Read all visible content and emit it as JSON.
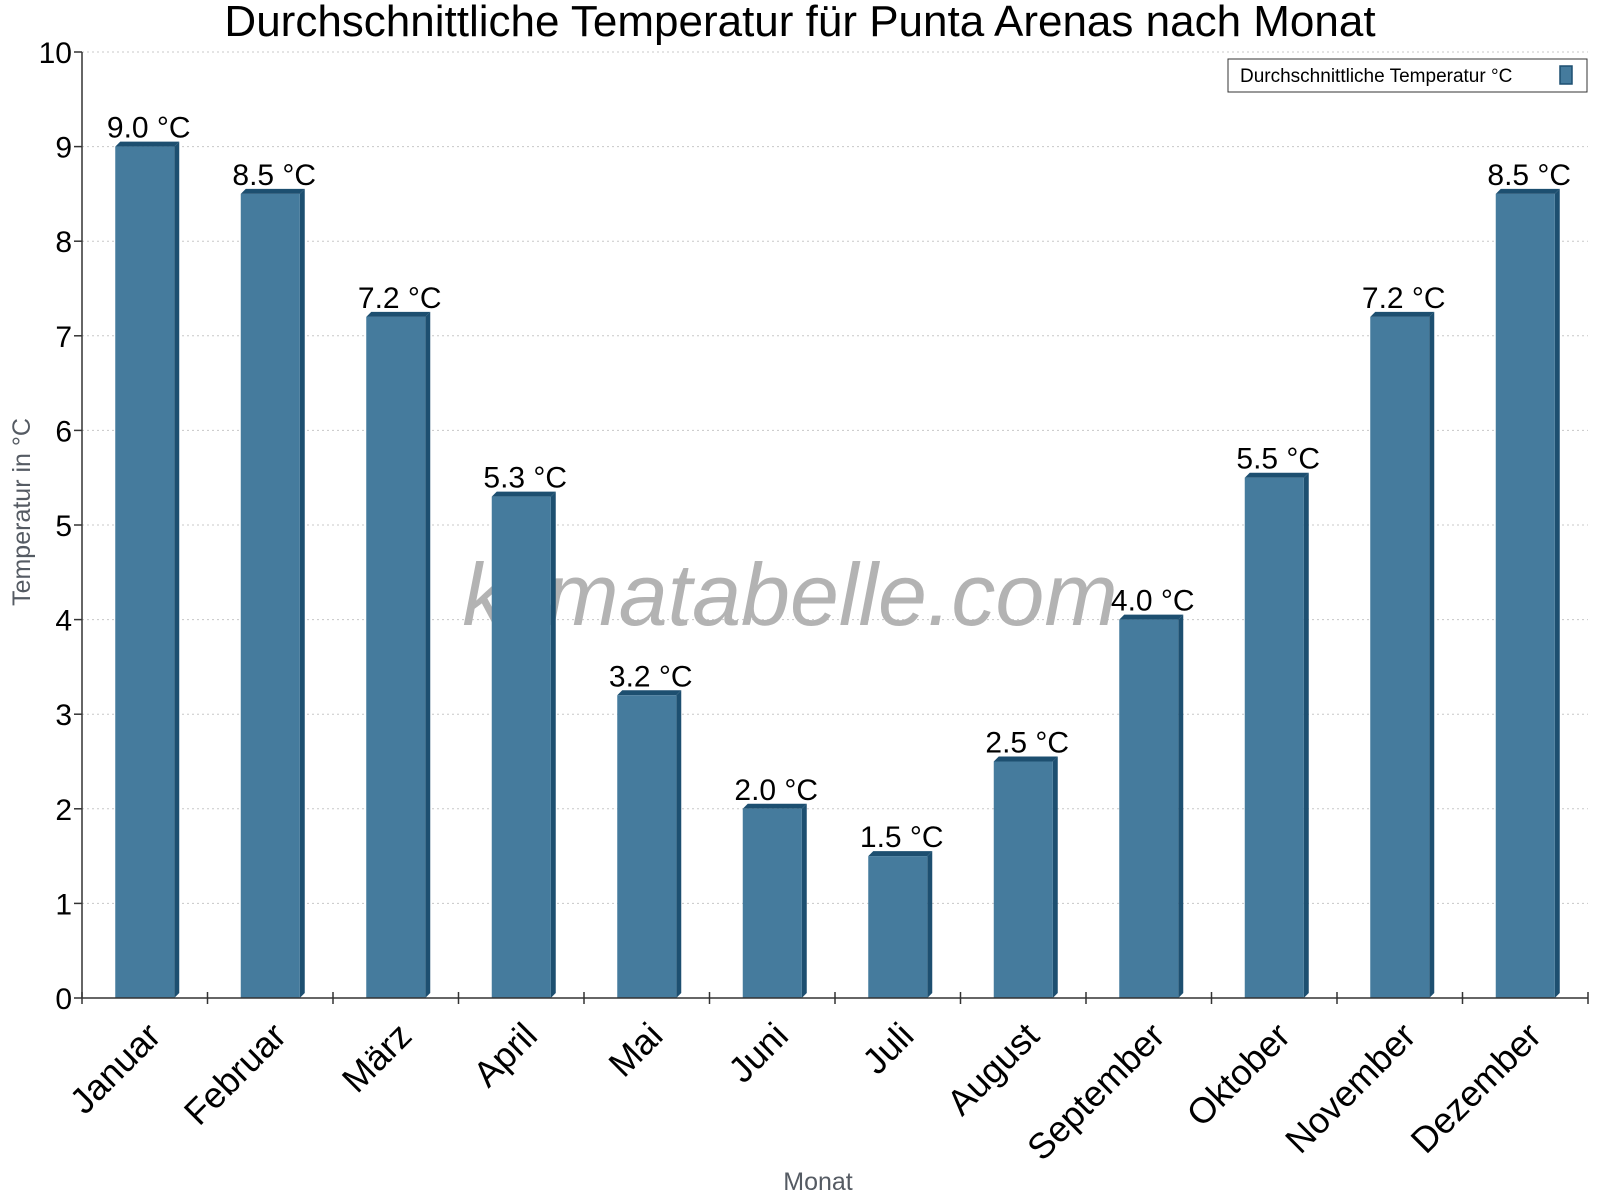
{
  "chart_data": {
    "type": "bar",
    "title": "Durchschnittliche Temperatur für Punta Arenas nach Monat",
    "xlabel": "Monat",
    "ylabel": "Temperatur in °C",
    "ylim": [
      0,
      10
    ],
    "yticks": [
      0,
      1,
      2,
      3,
      4,
      5,
      6,
      7,
      8,
      9,
      10
    ],
    "grid": true,
    "legend_position": "top-right",
    "categories": [
      "Januar",
      "Februar",
      "März",
      "April",
      "Mai",
      "Juni",
      "Juli",
      "August",
      "September",
      "Oktober",
      "November",
      "Dezember"
    ],
    "series": [
      {
        "name": "Durchschnittliche Temperatur °C",
        "values": [
          9.0,
          8.5,
          7.2,
          5.3,
          3.2,
          2.0,
          1.5,
          2.5,
          4.0,
          5.5,
          7.2,
          8.5
        ],
        "labels": [
          "9.0 °C",
          "8.5 °C",
          "7.2 °C",
          "5.3 °C",
          "3.2 °C",
          "2.0 °C",
          "1.5 °C",
          "2.5 °C",
          "4.0 °C",
          "5.5 °C",
          "7.2 °C",
          "8.5 °C"
        ],
        "color": "#457b9d",
        "edge_color": "#1d4f70"
      }
    ]
  },
  "watermark": "klimatabelle.com"
}
